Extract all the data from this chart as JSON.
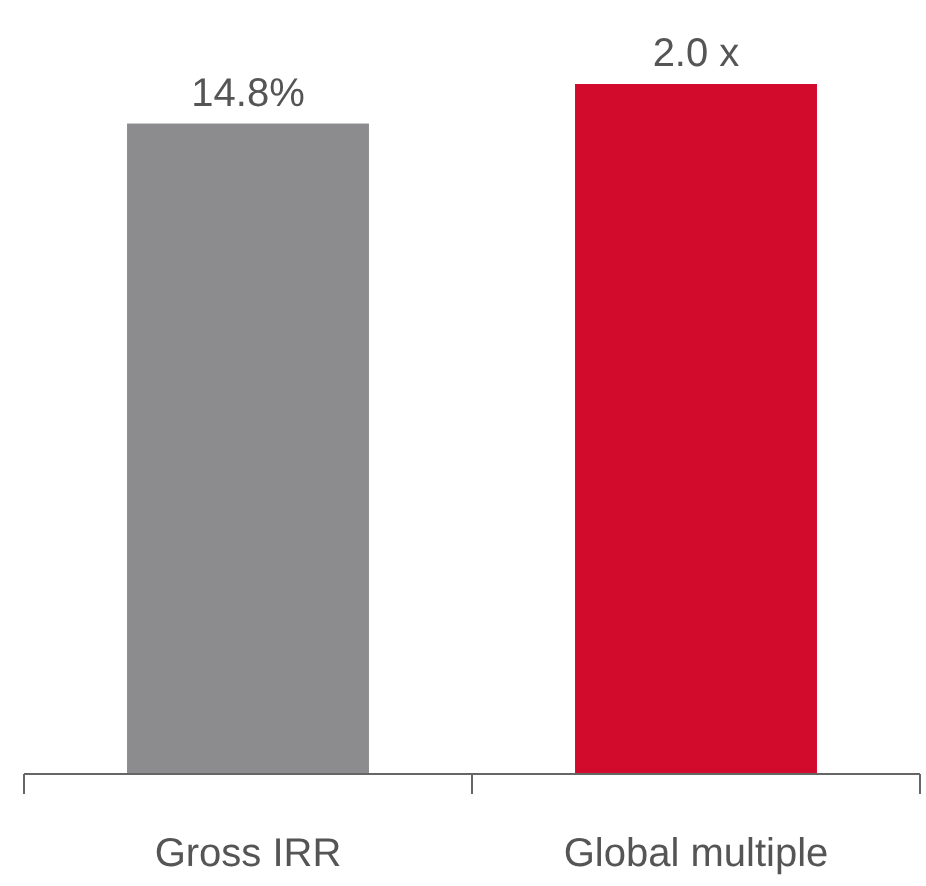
{
  "chart_data": {
    "type": "bar",
    "categories": [
      "Gross IRR",
      "Global multiple"
    ],
    "series": [
      {
        "color": "#8c8c8f",
        "values": [
          14.8,
          null
        ],
        "value_labels": [
          "14.8%",
          null
        ]
      },
      {
        "color": "#d20a2b",
        "values": [
          null,
          2.0
        ],
        "axis": "y2",
        "value_labels": [
          null,
          "2.0 x"
        ]
      }
    ],
    "ylim": [
      0,
      15.7
    ],
    "y2lim": [
      0,
      2.0
    ],
    "tick_labels": "x"
  }
}
